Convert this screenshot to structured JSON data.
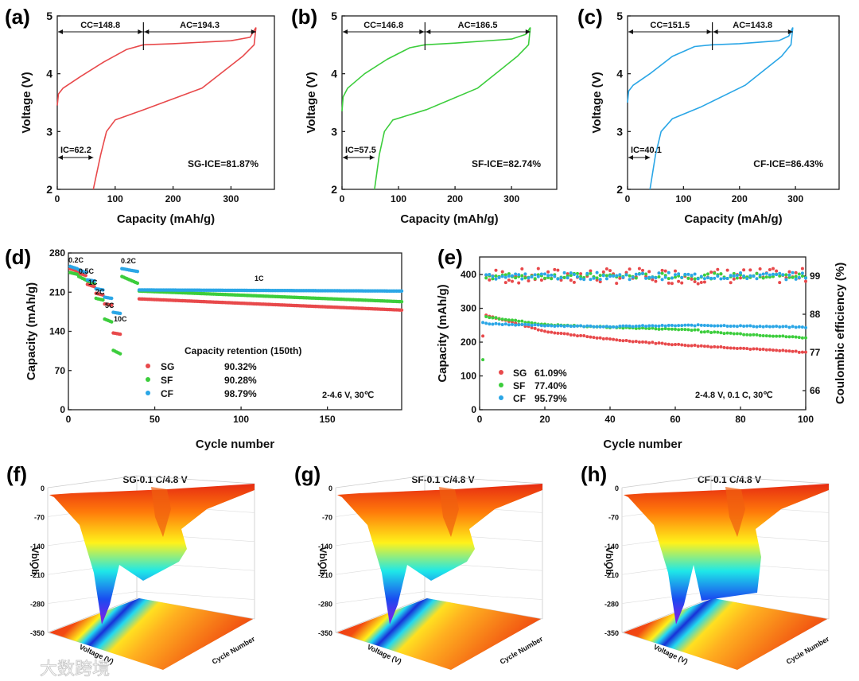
{
  "chart_data": [
    {
      "panel": "(a)",
      "type": "line",
      "xlabel": "Capacity (mAh/g)",
      "ylabel": "Voltage (V)",
      "xlim": [
        0,
        375
      ],
      "ylim": [
        2,
        5
      ],
      "xticks": [
        "0",
        "100",
        "200",
        "300"
      ],
      "yticks": [
        "2",
        "3",
        "4",
        "5"
      ],
      "color": "#e8494b",
      "charge": [
        [
          0,
          3.45
        ],
        [
          2,
          3.65
        ],
        [
          10,
          3.75
        ],
        [
          40,
          3.95
        ],
        [
          80,
          4.2
        ],
        [
          120,
          4.42
        ],
        [
          148.8,
          4.5
        ],
        [
          200,
          4.52
        ],
        [
          300,
          4.57
        ],
        [
          333,
          4.63
        ],
        [
          343.1,
          4.8
        ]
      ],
      "discharge": [
        [
          343.1,
          4.8
        ],
        [
          340,
          4.5
        ],
        [
          320,
          4.3
        ],
        [
          250,
          3.75
        ],
        [
          150,
          3.38
        ],
        [
          100,
          3.2
        ],
        [
          85,
          3.0
        ],
        [
          75,
          2.6
        ],
        [
          62.2,
          2.0
        ]
      ],
      "annotations": {
        "cc": "CC=148.8",
        "ac": "AC=194.3",
        "ic": "IC=62.2",
        "ice": "SG-ICE=81.87%"
      },
      "cc_value": 148.8,
      "total_value": 343.1,
      "ic_value": 62.2
    },
    {
      "panel": "(b)",
      "type": "line",
      "xlabel": "Capacity (mAh/g)",
      "ylabel": "Voltage (V)",
      "xlim": [
        0,
        380
      ],
      "ylim": [
        2,
        5
      ],
      "xticks": [
        "0",
        "100",
        "200",
        "300"
      ],
      "yticks": [
        "2",
        "3",
        "4",
        "5"
      ],
      "color": "#3ccd3c",
      "charge": [
        [
          0,
          3.35
        ],
        [
          2,
          3.6
        ],
        [
          10,
          3.75
        ],
        [
          40,
          4.0
        ],
        [
          80,
          4.25
        ],
        [
          120,
          4.45
        ],
        [
          146.8,
          4.5
        ],
        [
          200,
          4.53
        ],
        [
          300,
          4.6
        ],
        [
          325,
          4.68
        ],
        [
          333.3,
          4.8
        ]
      ],
      "discharge": [
        [
          333.3,
          4.8
        ],
        [
          330,
          4.5
        ],
        [
          310,
          4.3
        ],
        [
          240,
          3.75
        ],
        [
          150,
          3.38
        ],
        [
          90,
          3.2
        ],
        [
          75,
          3.0
        ],
        [
          66,
          2.6
        ],
        [
          57.5,
          2.0
        ]
      ],
      "annotations": {
        "cc": "CC=146.8",
        "ac": "AC=186.5",
        "ic": "IC=57.5",
        "ice": "SF-ICE=82.74%"
      },
      "cc_value": 146.8,
      "total_value": 333.3,
      "ic_value": 57.5
    },
    {
      "panel": "(c)",
      "type": "line",
      "xlabel": "Capacity (mAh/g)",
      "ylabel": "Voltage (V)",
      "xlim": [
        0,
        378
      ],
      "ylim": [
        2,
        5
      ],
      "xticks": [
        "0",
        "100",
        "200",
        "300"
      ],
      "yticks": [
        "2",
        "3",
        "4",
        "5"
      ],
      "color": "#2aa6e6",
      "charge": [
        [
          0,
          3.5
        ],
        [
          2,
          3.7
        ],
        [
          10,
          3.8
        ],
        [
          40,
          4.0
        ],
        [
          80,
          4.3
        ],
        [
          120,
          4.47
        ],
        [
          151.5,
          4.5
        ],
        [
          200,
          4.52
        ],
        [
          270,
          4.57
        ],
        [
          288,
          4.65
        ],
        [
          295.3,
          4.8
        ]
      ],
      "discharge": [
        [
          295.3,
          4.8
        ],
        [
          292,
          4.5
        ],
        [
          275,
          4.3
        ],
        [
          210,
          3.8
        ],
        [
          130,
          3.42
        ],
        [
          80,
          3.22
        ],
        [
          60,
          3.0
        ],
        [
          50,
          2.6
        ],
        [
          40.1,
          2.0
        ]
      ],
      "annotations": {
        "cc": "CC=151.5",
        "ac": "AC=143.8",
        "ic": "IC=40.1",
        "ice": "CF-ICE=86.43%"
      },
      "cc_value": 151.5,
      "total_value": 295.3,
      "ic_value": 40.1
    },
    {
      "panel": "(d)",
      "type": "scatter",
      "xlabel": "Cycle number",
      "ylabel": "Capacity (mAh/g)",
      "xlim": [
        0,
        193
      ],
      "ylim": [
        0,
        280
      ],
      "xticks": [
        "0",
        "50",
        "100",
        "150"
      ],
      "yticks": [
        "0",
        "70",
        "140",
        "210",
        "280"
      ],
      "rate_labels": [
        "0.2C",
        "0.5C",
        "1C",
        "2C",
        "5C",
        "10C",
        "0.2C",
        "1C"
      ],
      "legend_title": "Capacity retention (150th)",
      "condition": "2-4.6 V, 30℃",
      "series": [
        {
          "name": "SG",
          "retention": "90.32%",
          "color": "#e8494b",
          "segments": [
            [
              1,
              5,
              252,
              248
            ],
            [
              6,
              10,
              244,
              240
            ],
            [
              11,
              15,
              224,
              220
            ],
            [
              16,
              20,
              208,
              205
            ],
            [
              21,
              25,
              189,
              187
            ],
            [
              26,
              30,
              137,
              135
            ],
            [
              41,
              193,
              198,
              178
            ]
          ]
        },
        {
          "name": "SF",
          "retention": "90.28%",
          "color": "#3ccd3c",
          "segments": [
            [
              1,
              5,
              245,
              242
            ],
            [
              6,
              10,
              238,
              232
            ],
            [
              11,
              15,
              230,
              226
            ],
            [
              16,
              20,
              199,
              196
            ],
            [
              21,
              25,
              162,
              157
            ],
            [
              26,
              30,
              106,
              100
            ],
            [
              31,
              40,
              238,
              226
            ],
            [
              41,
              193,
              212,
              193
            ]
          ]
        },
        {
          "name": "CF",
          "retention": "98.79%",
          "color": "#2aa6e6",
          "segments": [
            [
              1,
              5,
              256,
              252
            ],
            [
              6,
              10,
              250,
              245
            ],
            [
              11,
              15,
              232,
              230
            ],
            [
              16,
              20,
              216,
              214
            ],
            [
              21,
              25,
              201,
              199
            ],
            [
              26,
              30,
              174,
              172
            ],
            [
              31,
              40,
              252,
              247
            ],
            [
              41,
              193,
              214,
              212
            ]
          ]
        }
      ]
    },
    {
      "panel": "(e)",
      "type": "scatter",
      "xlabel": "Cycle number",
      "ylabel": "Capacity (mAh/g)",
      "ylabel_right": "Coulombic efficiency (%)",
      "xlim": [
        0,
        100
      ],
      "ylim": [
        0,
        452
      ],
      "ylim_right": [
        60.5,
        104.5
      ],
      "xticks": [
        "0",
        "20",
        "40",
        "60",
        "80",
        "100"
      ],
      "yticks": [
        "0",
        "100",
        "200",
        "300",
        "400"
      ],
      "yticks_right": [
        "66",
        "77",
        "88",
        "99"
      ],
      "condition": "2-4.8 V, 0.1 C, 30℃",
      "series": [
        {
          "name": "SG",
          "retention": "61.09%",
          "color": "#e8494b",
          "first": 218,
          "capacity": [
            [
              2,
              280
            ],
            [
              20,
              232
            ],
            [
              40,
              208
            ],
            [
              60,
              193
            ],
            [
              80,
              182
            ],
            [
              100,
              170
            ]
          ],
          "ce_mean": 99,
          "ce_spread": 2.2
        },
        {
          "name": "SF",
          "retention": "77.40%",
          "color": "#3ccd3c",
          "first": 148,
          "capacity": [
            [
              2,
              275
            ],
            [
              20,
              252
            ],
            [
              40,
              244
            ],
            [
              67,
              236
            ],
            [
              68,
              231
            ],
            [
              100,
              213
            ]
          ],
          "ce_mean": 99,
          "ce_spread": 0.8
        },
        {
          "name": "CF",
          "retention": "95.79%",
          "color": "#2aa6e6",
          "first": 258,
          "capacity": [
            [
              2,
              255
            ],
            [
              20,
              249
            ],
            [
              40,
              246
            ],
            [
              68,
              250
            ],
            [
              100,
              244
            ]
          ],
          "ce_mean": 99,
          "ce_spread": 1.0
        }
      ]
    },
    {
      "panel": "(f)",
      "type": "surface",
      "title": "SG-0.1 C/4.8 V",
      "zlabel": "dQ/dV",
      "xlabel": "Voltage (V)",
      "ylabel": "Cycle Number",
      "zticks": [
        "0",
        "-70",
        "-140",
        "-210",
        "-280",
        "-350"
      ],
      "ylim": [
        0,
        100
      ]
    },
    {
      "panel": "(g)",
      "type": "surface",
      "title": "SF-0.1 C/4.8 V",
      "zlabel": "dQ/dV",
      "xlabel": "Voltage (V)",
      "ylabel": "Cycle Number",
      "zticks": [
        "0",
        "-70",
        "-140",
        "-210",
        "-280",
        "-350"
      ],
      "ylim": [
        0,
        100
      ]
    },
    {
      "panel": "(h)",
      "type": "surface",
      "title": "CF-0.1 C/4.8 V",
      "zlabel": "dQ/dV",
      "xlabel": "Voltage (V)",
      "ylabel": "Cycle Number",
      "zticks": [
        "0",
        "-70",
        "-140",
        "-210",
        "-280",
        "-350"
      ],
      "ylim": [
        0,
        100
      ]
    }
  ],
  "watermark": "大数跨境"
}
